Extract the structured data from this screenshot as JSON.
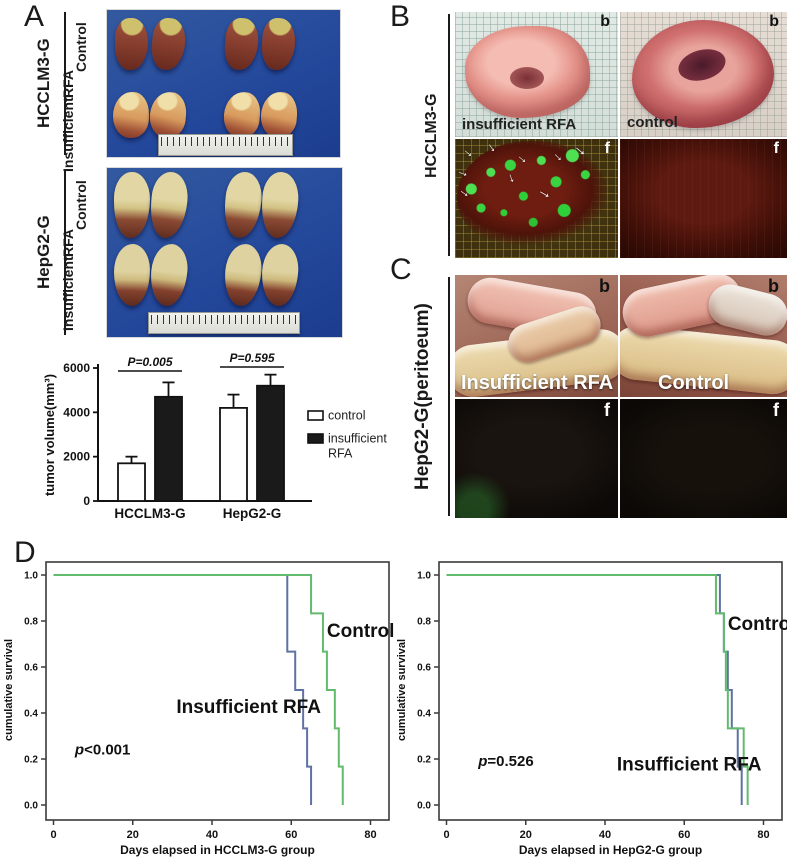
{
  "panel_a": {
    "letter": "A",
    "blocks": [
      {
        "cell_line": "HCCLM3-G",
        "top_label": "Control",
        "bottom_label_1": "Insufficient",
        "bottom_label_2": "RFA"
      },
      {
        "cell_line": "HepG2-G",
        "top_label": "Control",
        "bottom_label_1": "Insufficient",
        "bottom_label_2": "RFA"
      }
    ]
  },
  "panel_b": {
    "letter": "B",
    "side_label": "HCCLM3-G",
    "quadrants": [
      {
        "corner": "b",
        "label": "insufficient RFA"
      },
      {
        "corner": "b",
        "label": "control"
      },
      {
        "corner": "f"
      },
      {
        "corner": "f"
      }
    ]
  },
  "panel_c": {
    "letter": "C",
    "side_label": "HepG2-G(peritoeum)",
    "quadrants": [
      {
        "corner": "b",
        "label": "Insufficient RFA"
      },
      {
        "corner": "b",
        "label": "Control"
      },
      {
        "corner": "f"
      },
      {
        "corner": "f"
      }
    ]
  },
  "panel_d": {
    "letter": "D"
  },
  "colors": {
    "control_line": "#62bb6d",
    "insufficient_line": "#5e72a3",
    "bar_dark": "#1a1a1a",
    "photo_blue": "#2a4f9e"
  },
  "chart_data": [
    {
      "id": "bar-chart",
      "type": "bar",
      "title": "",
      "xlabel": "",
      "ylabel": "tumor volume(mm³)",
      "categories": [
        "HCCLM3-G",
        "HepG2-G"
      ],
      "series": [
        {
          "name": "control",
          "fill": "#ffffff",
          "values": [
            1700,
            4200
          ],
          "errors": [
            300,
            600
          ]
        },
        {
          "name": "insufficient RFA",
          "fill": "#1a1a1a",
          "values": [
            4700,
            5200
          ],
          "errors": [
            650,
            500
          ]
        }
      ],
      "ylim": [
        0,
        6000
      ],
      "yticks": [
        0,
        2000,
        4000,
        6000
      ],
      "annotations": [
        {
          "text": "P=0.005",
          "pair": 0
        },
        {
          "text": "P=0.595",
          "pair": 1
        }
      ],
      "legend": [
        {
          "lines": [
            "control"
          ]
        },
        {
          "lines": [
            "insufficient",
            "RFA"
          ]
        }
      ],
      "legend_position": "right",
      "grid": false
    },
    {
      "id": "km-left",
      "type": "line",
      "subtype": "step",
      "title": "",
      "xlabel": "Days elapsed in HCCLM3-G group",
      "ylabel": "cumulative survival",
      "xlim": [
        -3,
        85
      ],
      "ylim": [
        -0.04,
        1.06
      ],
      "xticks": [
        0,
        20,
        40,
        60,
        80
      ],
      "yticks": [
        0.0,
        0.2,
        0.4,
        0.6,
        0.8,
        1.0
      ],
      "p_label": "p<0.001",
      "p_pos": {
        "x": 5.4,
        "y": 0.22
      },
      "series": [
        {
          "name": "Insufficient RFA",
          "color": "#5e72a3",
          "x": [
            0,
            59,
            61,
            63,
            64,
            65
          ],
          "y": [
            1.0,
            0.667,
            0.5,
            0.333,
            0.167,
            0.0
          ]
        },
        {
          "name": "Control",
          "color": "#62bb6d",
          "x": [
            0,
            65,
            68,
            69,
            71,
            72,
            73
          ],
          "y": [
            1.0,
            0.833,
            0.667,
            0.5,
            0.333,
            0.167,
            0.0
          ]
        }
      ],
      "labels": [
        {
          "text": "Control",
          "x": 69,
          "y": 0.73
        },
        {
          "text": "Insufficient RFA",
          "x": 31,
          "y": 0.4
        }
      ],
      "grid": false,
      "legend_position": "none"
    },
    {
      "id": "km-right",
      "type": "line",
      "subtype": "step",
      "title": "",
      "xlabel": "Days elapsed in HepG2-G group",
      "ylabel": "cumulative survival",
      "xlim": [
        -3,
        85
      ],
      "ylim": [
        -0.04,
        1.06
      ],
      "xticks": [
        0,
        20,
        40,
        60,
        80
      ],
      "yticks": [
        0.0,
        0.2,
        0.4,
        0.6,
        0.8,
        1.0
      ],
      "p_label": "p=0.526",
      "p_pos": {
        "x": 8,
        "y": 0.17
      },
      "series": [
        {
          "name": "Insufficient RFA",
          "color": "#5e72a3",
          "x": [
            0,
            69,
            70,
            71,
            72,
            73.5,
            74.5
          ],
          "y": [
            1.0,
            0.833,
            0.667,
            0.5,
            0.333,
            0.167,
            0.0
          ]
        },
        {
          "name": "Control",
          "color": "#62bb6d",
          "x": [
            0,
            68,
            70,
            70.5,
            71,
            75,
            76
          ],
          "y": [
            1.0,
            0.833,
            0.667,
            0.5,
            0.333,
            0.167,
            0.0
          ]
        }
      ],
      "labels": [
        {
          "text": "Control",
          "x": 71,
          "y": 0.76
        },
        {
          "text": "Insufficient RFA",
          "x": 43,
          "y": 0.15
        }
      ],
      "grid": false,
      "legend_position": "none"
    }
  ]
}
